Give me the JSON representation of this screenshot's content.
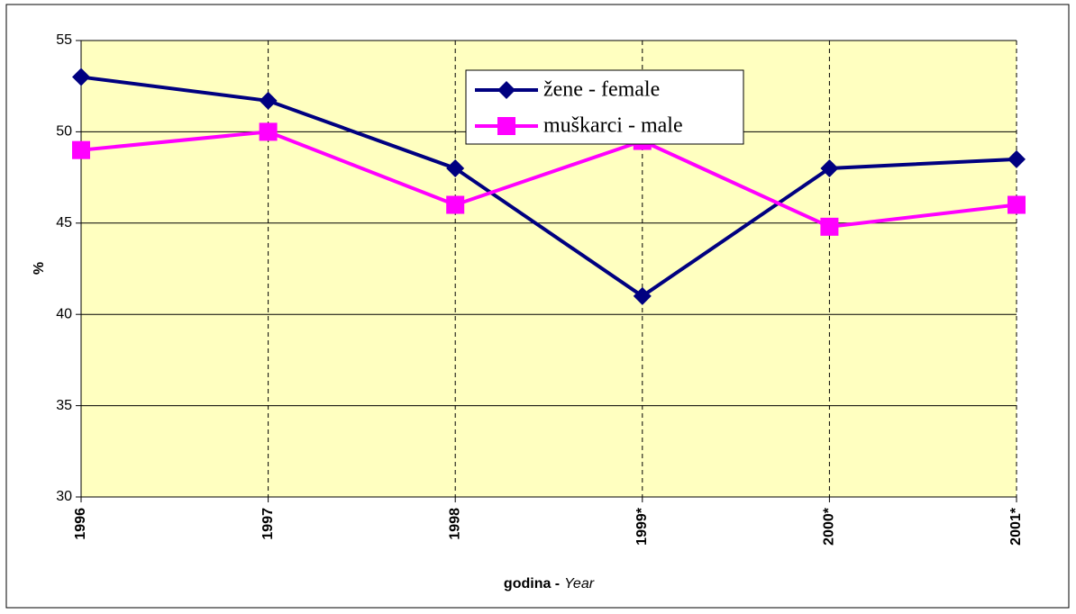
{
  "chart_data": {
    "type": "line",
    "categories": [
      "1996",
      "1997",
      "1998",
      "1999*",
      "2000*",
      "2001*"
    ],
    "series": [
      {
        "name": "žene - female",
        "color": "#000080",
        "marker": "diamond",
        "values": [
          53,
          51.7,
          48,
          41,
          48,
          48.5
        ]
      },
      {
        "name": "muškarci - male",
        "color": "#ff00ff",
        "marker": "square",
        "values": [
          49,
          50,
          46,
          49.5,
          44.8,
          46
        ]
      }
    ],
    "ylabel": "%",
    "xlabel_parts": [
      "godina -",
      "Year"
    ],
    "ylim": [
      30,
      55
    ],
    "yticks": [
      30,
      35,
      40,
      45,
      50,
      55
    ],
    "grid": true,
    "plot_background": "#ffffc0"
  }
}
